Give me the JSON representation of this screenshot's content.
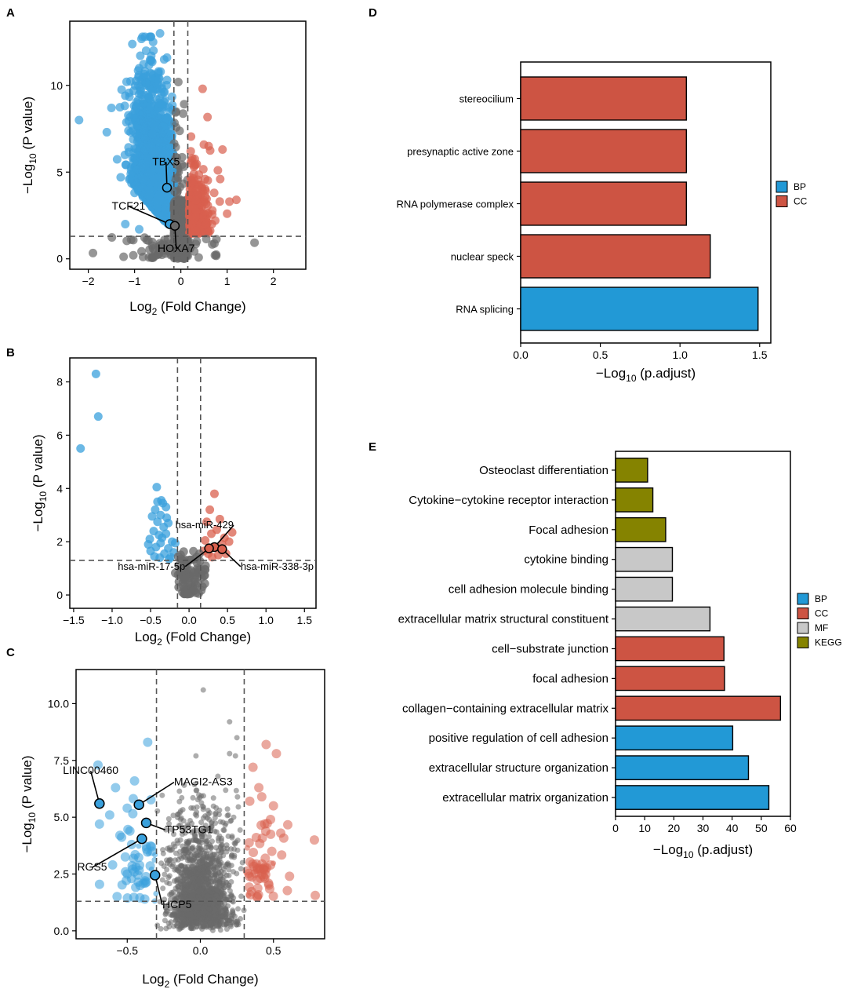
{
  "colors": {
    "blue": "#3aa0dc",
    "red": "#d9604e",
    "grey": "#6a6a6a",
    "bar_BP": "#2299d6",
    "bar_CC": "#cd5443",
    "bar_MF": "#c8c8c8",
    "bar_KEGG": "#858300"
  },
  "panel_labels": [
    "A",
    "B",
    "C",
    "D",
    "E"
  ],
  "chart_data": [
    {
      "panel": "A",
      "type": "scatter",
      "xlabel_main": "Log",
      "xlabel_sub": "2",
      "xlabel_rest": " (Fold Change)",
      "ylabel_main": "−Log",
      "ylabel_sub": "10",
      "ylabel_rest": " (P value)",
      "xlim": [
        -2.4,
        2.7
      ],
      "ylim": [
        -0.6,
        13.7
      ],
      "xticks": [
        -2,
        -1,
        0,
        1,
        2
      ],
      "xtick_labels": [
        "−2",
        "−1",
        "0",
        "1",
        "2"
      ],
      "yticks": [
        0,
        5,
        10
      ],
      "ytick_labels": [
        "0",
        "5",
        "10"
      ],
      "vlines": [
        -0.15,
        0.15
      ],
      "hline": 1.3,
      "highlighted": [
        {
          "label": "TBX5",
          "x": -0.3,
          "y": 4.1,
          "label_x": -0.32,
          "label_y": 5.4
        },
        {
          "label": "TCF21",
          "x": -0.24,
          "y": 2.0,
          "label_x": -1.13,
          "label_y": 2.85
        },
        {
          "label": "HOXA7",
          "x": -0.13,
          "y": 1.9,
          "label_x": -0.1,
          "label_y": 0.4
        }
      ]
    },
    {
      "panel": "B",
      "type": "scatter",
      "xlabel_main": "Log",
      "xlabel_sub": "2",
      "xlabel_rest": " (Fold Change)",
      "ylabel_main": "−Log",
      "ylabel_sub": "10",
      "ylabel_rest": " (P value)",
      "xlim": [
        -1.55,
        1.65
      ],
      "ylim": [
        -0.5,
        8.9
      ],
      "xticks": [
        -1.5,
        -1.0,
        -0.5,
        0.0,
        0.5,
        1.0,
        1.5
      ],
      "xtick_labels": [
        "−1.5",
        "−1.0",
        "−0.5",
        "0.0",
        "0.5",
        "1.0",
        "1.5"
      ],
      "yticks": [
        0,
        2,
        4,
        6,
        8
      ],
      "ytick_labels": [
        "0",
        "2",
        "4",
        "6",
        "8"
      ],
      "vlines": [
        -0.15,
        0.15
      ],
      "hline": 1.3,
      "highlighted": [
        {
          "label": "hsa-miR-429",
          "x": 0.33,
          "y": 1.8,
          "label_x": 0.58,
          "label_y": 2.5
        },
        {
          "label": "hsa-miR-17-5p",
          "x": 0.26,
          "y": 1.75,
          "label_x": -0.05,
          "label_y": 0.95
        },
        {
          "label": "hsa-miR-338-3p",
          "x": 0.43,
          "y": 1.72,
          "label_x": 0.67,
          "label_y": 0.95
        }
      ],
      "notable_points": [
        {
          "x": -1.21,
          "y": 8.3
        },
        {
          "x": -1.18,
          "y": 6.7
        },
        {
          "x": -1.41,
          "y": 5.5
        }
      ]
    },
    {
      "panel": "C",
      "type": "scatter",
      "xlabel_main": "Log",
      "xlabel_sub": "2",
      "xlabel_rest": " (Fold Change)",
      "ylabel_main": "−Log",
      "ylabel_sub": "10",
      "ylabel_rest": " (P value)",
      "xlim": [
        -0.85,
        0.85
      ],
      "ylim": [
        -0.35,
        11.5
      ],
      "xticks": [
        -0.5,
        0.0,
        0.5
      ],
      "xtick_labels": [
        "−0.5",
        "0.0",
        "0.5"
      ],
      "yticks": [
        0.0,
        2.5,
        5.0,
        7.5,
        10.0
      ],
      "ytick_labels": [
        "0.0",
        "2.5",
        "5.0",
        "7.5",
        "10.0"
      ],
      "vlines": [
        -0.3,
        0.3
      ],
      "hline": 1.3,
      "highlighted": [
        {
          "label": "LINC00460",
          "x": -0.69,
          "y": 5.6,
          "label_x": -0.75,
          "label_y": 6.9
        },
        {
          "label": "MAGI2-AS3",
          "x": -0.42,
          "y": 5.55,
          "label_x": -0.18,
          "label_y": 6.4
        },
        {
          "label": "TP53TG1",
          "x": -0.37,
          "y": 4.75,
          "label_x": -0.24,
          "label_y": 4.3
        },
        {
          "label": "RGS5",
          "x": -0.4,
          "y": 4.05,
          "label_x": -0.74,
          "label_y": 2.65
        },
        {
          "label": "HCP5",
          "x": -0.31,
          "y": 2.45,
          "label_x": -0.26,
          "label_y": 1.0
        }
      ]
    },
    {
      "panel": "D",
      "type": "bar",
      "orientation": "horizontal",
      "xlabel_main": "−Log",
      "xlabel_sub": "10",
      "xlabel_rest": " (p.adjust)",
      "xlim": [
        0,
        1.57
      ],
      "xticks": [
        0.0,
        0.5,
        1.0,
        1.5
      ],
      "xtick_labels": [
        "0.0",
        "0.5",
        "1.0",
        "1.5"
      ],
      "categories": [
        "stereocilium",
        "presynaptic active zone",
        "RNA polymerase complex",
        "nuclear speck",
        "RNA splicing"
      ],
      "values": [
        1.04,
        1.04,
        1.04,
        1.19,
        1.49
      ],
      "groups": [
        "CC",
        "CC",
        "CC",
        "CC",
        "BP"
      ],
      "legend": [
        "BP",
        "CC"
      ],
      "legend_position": "right"
    },
    {
      "panel": "E",
      "type": "bar",
      "orientation": "horizontal",
      "xlabel_main": "−Log",
      "xlabel_sub": "10",
      "xlabel_rest": " (p.adjust)",
      "xlim": [
        0,
        60
      ],
      "xticks": [
        0,
        10,
        20,
        30,
        40,
        50,
        60
      ],
      "xtick_labels": [
        "0",
        "10",
        "20",
        "30",
        "40",
        "50",
        "60"
      ],
      "categories": [
        "Osteoclast differentiation",
        "Cytokine−cytokine receptor interaction",
        "Focal adhesion",
        "cytokine binding",
        "cell adhesion molecule binding",
        "extracellular matrix structural constituent",
        "cell−substrate junction",
        "focal adhesion",
        "collagen−containing extracellular matrix",
        "positive regulation of cell adhesion",
        "extracellular structure organization",
        "extracellular matrix organization"
      ],
      "values": [
        11.0,
        12.8,
        17.2,
        19.5,
        19.5,
        32.4,
        37.2,
        37.4,
        56.6,
        40.2,
        45.6,
        52.6
      ],
      "groups": [
        "KEGG",
        "KEGG",
        "KEGG",
        "MF",
        "MF",
        "MF",
        "CC",
        "CC",
        "CC",
        "BP",
        "BP",
        "BP"
      ],
      "legend": [
        "BP",
        "CC",
        "MF",
        "KEGG"
      ],
      "legend_position": "right"
    }
  ]
}
